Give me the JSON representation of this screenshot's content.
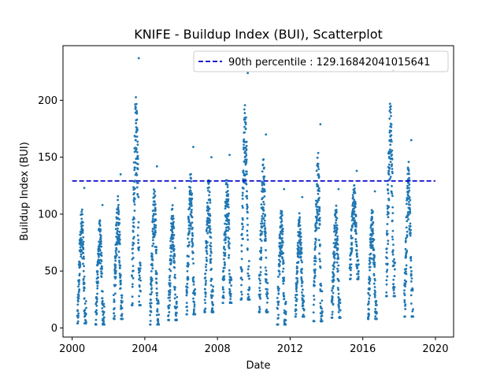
{
  "chart_data": {
    "type": "scatter",
    "title": "KNIFE - Buildup Index (BUI), Scatterplot",
    "xlabel": "Date",
    "ylabel": "Buildup Index (BUI)",
    "xlim": [
      "1999-07-01",
      "2021-01-01"
    ],
    "ylim": [
      -8,
      248
    ],
    "x_ticks": [
      "2000",
      "2004",
      "2008",
      "2012",
      "2016",
      "2020"
    ],
    "y_ticks": [
      0,
      50,
      100,
      150,
      200
    ],
    "grid": false,
    "legend_position": "top-right",
    "reference_line": {
      "label": "90th percentile : 129.16842041015641",
      "value": 129.16842041015641,
      "x_range": [
        "2000-01-01",
        "2020-01-01"
      ],
      "color": "#0000cc",
      "style": "dashed"
    },
    "series": [
      {
        "color": "#1f77b4",
        "season_peaks": [
          {
            "start": "2000-04-15",
            "end": "2000-10-10",
            "min": 4,
            "max": 123
          },
          {
            "start": "2001-04-15",
            "end": "2001-10-10",
            "min": 3,
            "max": 108
          },
          {
            "start": "2002-04-15",
            "end": "2002-10-10",
            "min": 8,
            "max": 135
          },
          {
            "start": "2003-04-15",
            "end": "2003-10-10",
            "min": 20,
            "max": 237
          },
          {
            "start": "2004-04-15",
            "end": "2004-10-10",
            "min": 3,
            "max": 142
          },
          {
            "start": "2005-04-15",
            "end": "2005-10-10",
            "min": 7,
            "max": 123
          },
          {
            "start": "2006-04-15",
            "end": "2006-10-10",
            "min": 12,
            "max": 159
          },
          {
            "start": "2007-04-15",
            "end": "2007-10-10",
            "min": 14,
            "max": 150
          },
          {
            "start": "2008-04-15",
            "end": "2008-10-10",
            "min": 22,
            "max": 152
          },
          {
            "start": "2009-04-15",
            "end": "2009-10-10",
            "min": 25,
            "max": 224
          },
          {
            "start": "2010-04-15",
            "end": "2010-10-10",
            "min": 14,
            "max": 170
          },
          {
            "start": "2011-04-15",
            "end": "2011-10-10",
            "min": 3,
            "max": 122
          },
          {
            "start": "2012-04-15",
            "end": "2012-10-10",
            "min": 10,
            "max": 115
          },
          {
            "start": "2013-04-15",
            "end": "2013-10-10",
            "min": 6,
            "max": 179
          },
          {
            "start": "2014-04-15",
            "end": "2014-10-10",
            "min": 9,
            "max": 122
          },
          {
            "start": "2015-04-15",
            "end": "2015-10-10",
            "min": 43,
            "max": 138
          },
          {
            "start": "2016-04-15",
            "end": "2016-10-10",
            "min": 8,
            "max": 120
          },
          {
            "start": "2017-04-15",
            "end": "2017-10-10",
            "min": 28,
            "max": 226
          },
          {
            "start": "2018-04-15",
            "end": "2018-10-10",
            "min": 10,
            "max": 165
          }
        ]
      }
    ]
  }
}
